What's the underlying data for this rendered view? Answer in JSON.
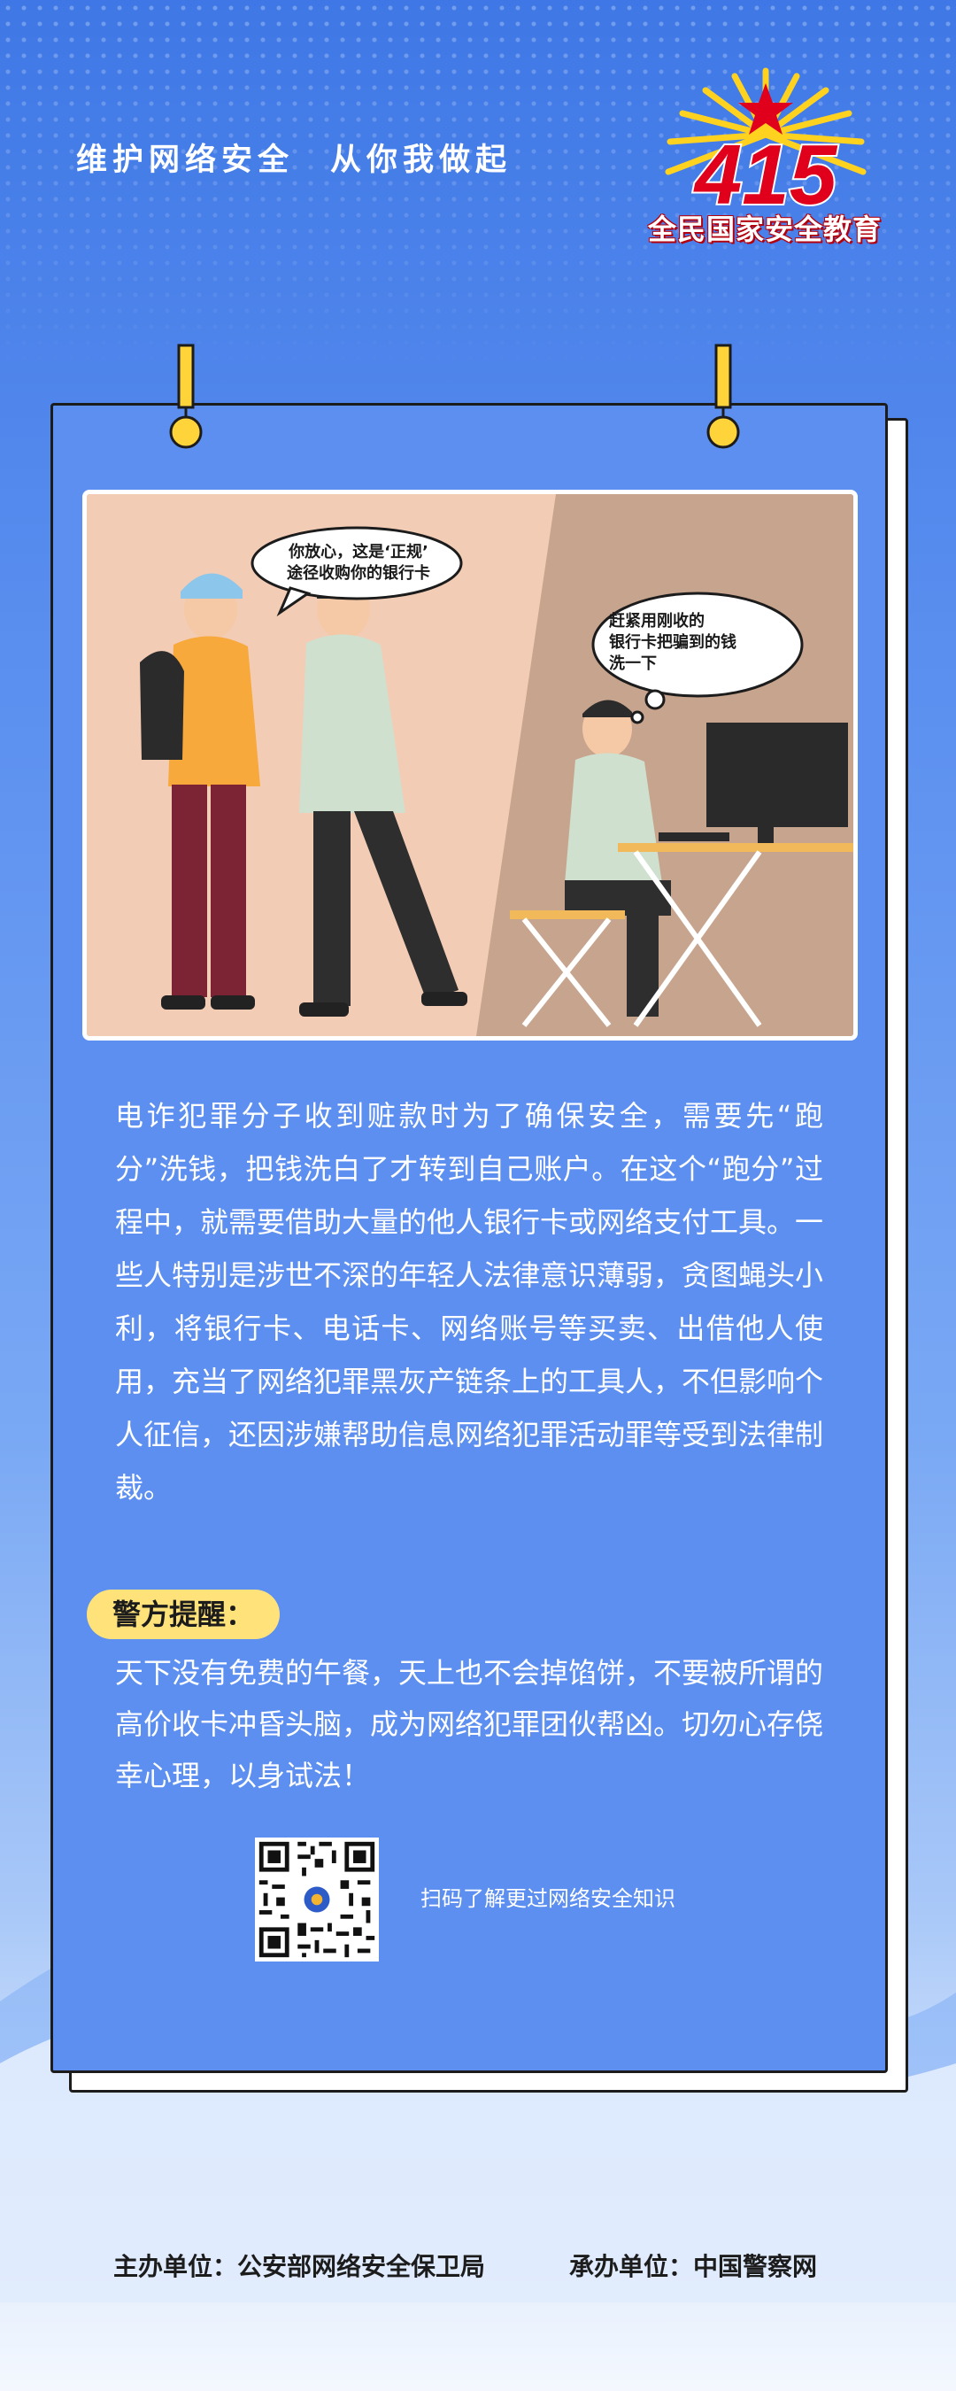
{
  "header": {
    "slogan": "维护网络安全　从你我做起",
    "logo_number": "415",
    "logo_caption": "全民国家安全教育"
  },
  "illustration": {
    "bubble_left": "你放心，这是‘正规’\n途径收购你的银行卡",
    "bubble_right": "赶紧用刚收的\n银行卡把骗到的钱\n洗一下"
  },
  "body": {
    "paragraph": "电诈犯罪分子收到赃款时为了确保安全，需要先“跑分”洗钱，把钱洗白了才转到自己账户。在这个“跑分”过程中，就需要借助大量的他人银行卡或网络支付工具。一些人特别是涉世不深的年轻人法律意识薄弱，贪图蝇头小利，将银行卡、电话卡、网络账号等买卖、出借他人使用，充当了网络犯罪黑灰产链条上的工具人，不但影响个人征信，还因涉嫌帮助信息网络犯罪活动罪等受到法律制裁。"
  },
  "warning": {
    "tag": "警方提醒：",
    "text": "天下没有免费的午餐，天上也不会掉馅饼，不要被所谓的高价收卡冲昏头脑，成为网络犯罪团伙帮凶。切勿心存侥幸心理，以身试法！"
  },
  "qr": {
    "caption": "扫码了解更过网络安全知识"
  },
  "footer": {
    "host": "主办单位：公安部网络安全保卫局",
    "organizer": "承办单位：中国警察网"
  },
  "colors": {
    "card_blue": "#5c8ff0",
    "tag_yellow": "#ffe27a",
    "logo_red": "#e0001b"
  }
}
